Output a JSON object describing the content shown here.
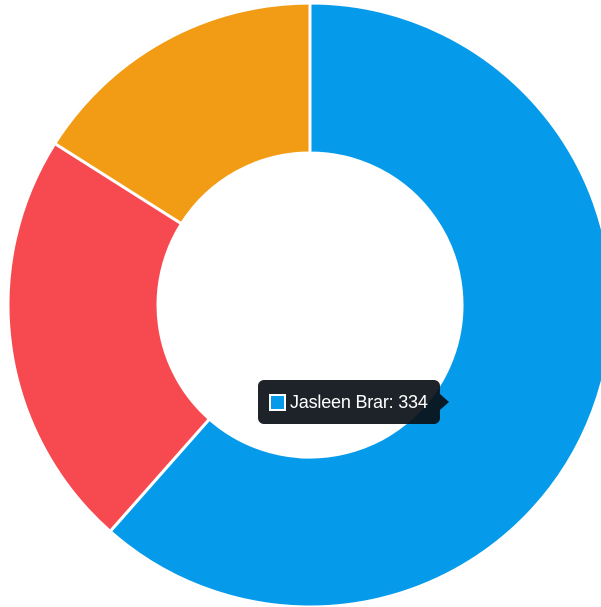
{
  "chart_data": {
    "type": "pie",
    "variant": "doughnut",
    "slices": [
      {
        "label": "Jasleen Brar",
        "value": 334,
        "color": "#059bea"
      },
      {
        "value": 122,
        "color": "#f64a50"
      },
      {
        "value": 87,
        "color": "#f29c15"
      }
    ],
    "active_slice": 0
  },
  "tooltip": {
    "label": "Jasleen Brar",
    "value": 334,
    "text": "Jasleen Brar: 334",
    "swatch_color": "#059bea"
  }
}
